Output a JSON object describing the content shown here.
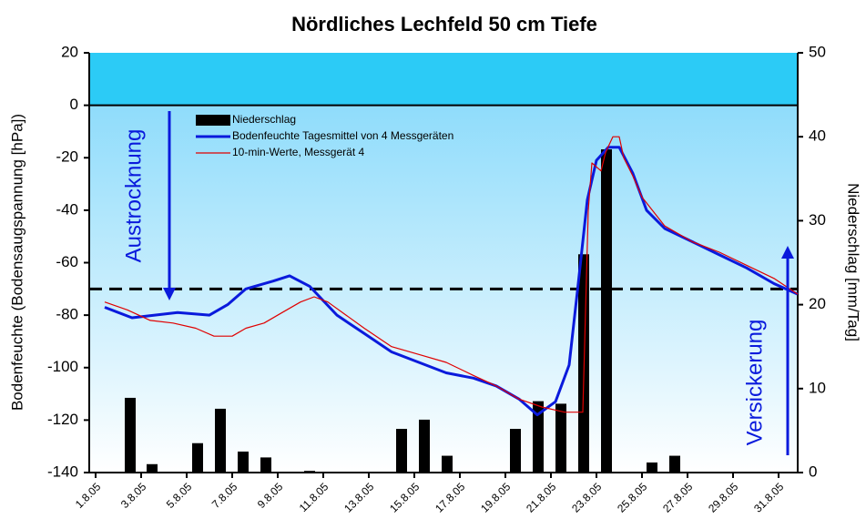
{
  "chart_data": {
    "type": "combo",
    "title": "Nördliches Lechfeld 50 cm Tiefe",
    "y_label": "Bodenfeuchte (Bodensaugspannung [hPa])",
    "y2_label": "Niederschlag [mm/Tag]",
    "xlim": [
      0.72,
      31.84
    ],
    "xticks": [
      {
        "value": 1,
        "label": "1.8.05"
      },
      {
        "value": 3,
        "label": "3.8.05"
      },
      {
        "value": 5,
        "label": "5.8.05"
      },
      {
        "value": 7,
        "label": "7.8.05"
      },
      {
        "value": 9,
        "label": "9.8.05"
      },
      {
        "value": 11,
        "label": "11.8.05"
      },
      {
        "value": 13,
        "label": "13.8.05"
      },
      {
        "value": 15,
        "label": "15.8.05"
      },
      {
        "value": 17,
        "label": "17.8.05"
      },
      {
        "value": 19,
        "label": "19.8.05"
      },
      {
        "value": 21,
        "label": "21.8.05"
      },
      {
        "value": 23,
        "label": "23.8.05"
      },
      {
        "value": 25,
        "label": "25.8.05"
      },
      {
        "value": 27,
        "label": "27.8.05"
      },
      {
        "value": 29,
        "label": "29.8.05"
      },
      {
        "value": 31,
        "label": "31.8.05"
      }
    ],
    "ylim": [
      -140,
      20
    ],
    "yticks": [
      -140,
      -120,
      -100,
      -80,
      -60,
      -40,
      -20,
      0,
      20
    ],
    "y2lim": [
      0,
      50
    ],
    "y2ticks": [
      0,
      10,
      20,
      30,
      40,
      50
    ],
    "threshold": -70,
    "series": [
      {
        "name": "Niederschlag",
        "type": "bar",
        "axis": "y2",
        "color": "#000000",
        "x": [
          2.52,
          3.48,
          5.48,
          6.48,
          7.48,
          8.48,
          10.4,
          14.44,
          15.44,
          16.44,
          19.44,
          20.44,
          21.44,
          22.44,
          23.44,
          25.44,
          26.44
        ],
        "values": [
          8.9,
          1,
          3.5,
          7.6,
          2.5,
          1.8,
          0.2,
          5.2,
          6.3,
          2,
          5.2,
          8.5,
          8.2,
          26,
          38.5,
          1.2,
          2
        ]
      },
      {
        "name": "Bodenfeuchte Tagesmittel von 4 Messgeräten",
        "type": "line",
        "color": "#0a1adc",
        "x": [
          1.4,
          2.6,
          3.6,
          4.6,
          6,
          6.8,
          7.6,
          8.8,
          9.52,
          10.4,
          11.6,
          12.8,
          14,
          15.2,
          16.4,
          17.6,
          18.6,
          19.6,
          20.4,
          21.2,
          21.8,
          22.2,
          22.6,
          23,
          23.52,
          24,
          24.6,
          25.2,
          26,
          27.2,
          28.4,
          29.6,
          30.8,
          31.84
        ],
        "values": [
          -77,
          -81,
          -80,
          -79,
          -80,
          -76,
          -70,
          -67,
          -65,
          -69,
          -80,
          -87,
          -94,
          -98,
          -102,
          -104,
          -107,
          -112,
          -118,
          -113,
          -99,
          -68,
          -36,
          -21,
          -16,
          -16,
          -26,
          -40,
          -47,
          -52,
          -57,
          -62,
          -68,
          -72
        ]
      },
      {
        "name": "10-min-Werte, Messgerät 4",
        "type": "line",
        "color": "#e00000",
        "x": [
          1.4,
          2.4,
          3.4,
          4.4,
          5.4,
          6.2,
          7,
          7.6,
          8.4,
          9.2,
          10,
          10.6,
          11.2,
          12,
          12.8,
          14,
          15.2,
          16.4,
          17.6,
          18.6,
          19.6,
          20.6,
          21.6,
          22.4,
          22.64,
          22.8,
          23.2,
          23.4,
          23.72,
          24,
          24.2,
          24.6,
          25,
          26,
          27.2,
          28.4,
          29.6,
          30.8,
          31.84
        ],
        "values": [
          -75,
          -78,
          -82,
          -83,
          -85,
          -88,
          -88,
          -85,
          -83,
          -79,
          -75,
          -73,
          -75,
          -80,
          -85,
          -92,
          -95,
          -98,
          -103,
          -107,
          -112,
          -115,
          -117,
          -117,
          -40,
          -22,
          -25,
          -18,
          -12,
          -12,
          -20,
          -27,
          -35,
          -46,
          -52,
          -56,
          -61,
          -66,
          -72
        ]
      }
    ],
    "annotations": [
      {
        "text": "Austrocknung",
        "color": "#0a1adc"
      },
      {
        "text": "Versickerung",
        "color": "#0a1adc"
      }
    ]
  }
}
